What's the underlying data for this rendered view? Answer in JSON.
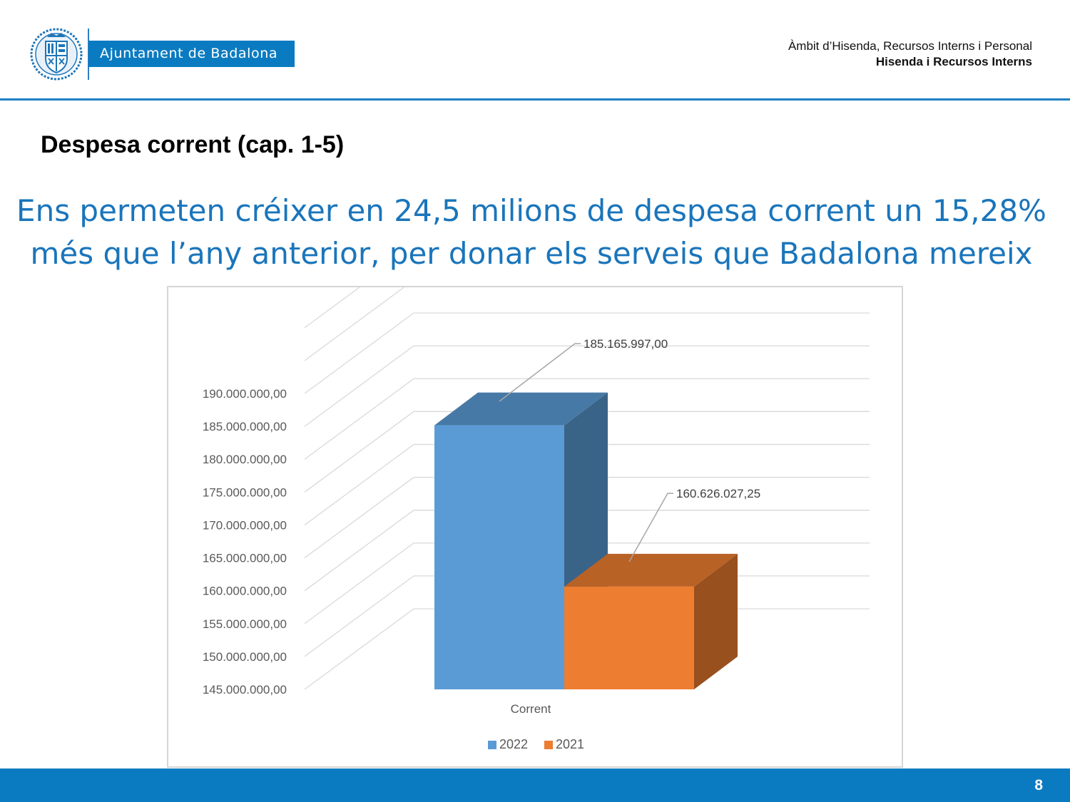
{
  "header": {
    "logo_text": "Ajuntament de Badalona",
    "department": "Àmbit d’Hisenda, Recursos Interns i Personal",
    "subdepartment": "Hisenda i Recursos Interns"
  },
  "section_title": "Despesa corrent (cap. 1-5)",
  "headline": {
    "line1": "Ens permeten créixer en 24,5 milions de despesa corrent un 15,28%",
    "line2": "més que l’any anterior, per donar els serveis que Badalona mereix"
  },
  "chart_data": {
    "type": "bar",
    "style": "3d-column",
    "categories": [
      "Corrent"
    ],
    "series": [
      {
        "name": "2022",
        "values": [
          185165997.0
        ],
        "label": "185.165.997,00",
        "color": "#5b9bd5"
      },
      {
        "name": "2021",
        "values": [
          160626027.25
        ],
        "label": "160.626.027,25",
        "color": "#ed7d31"
      }
    ],
    "ylim": [
      145000000,
      190000000
    ],
    "yticks": [
      "145.000.000,00",
      "150.000.000,00",
      "155.000.000,00",
      "160.000.000,00",
      "165.000.000,00",
      "170.000.000,00",
      "175.000.000,00",
      "180.000.000,00",
      "185.000.000,00",
      "190.000.000,00"
    ],
    "grid": true,
    "legend": "bottom"
  },
  "footer": {
    "page_number": "8"
  }
}
